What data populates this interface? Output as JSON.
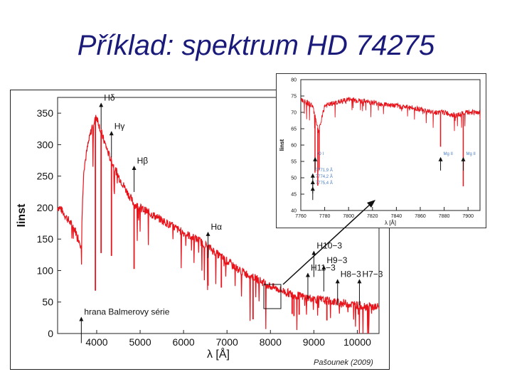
{
  "slide": {
    "title": "Příklad: spektrum HD 74275",
    "credit": "Pašounek (2009)"
  },
  "colors": {
    "spectrum": "#e8141c",
    "title": "#1a1a7a",
    "axis": "#222222",
    "annotation": "#4a7cc0"
  },
  "chart_data": [
    {
      "type": "line",
      "title": "",
      "xlabel": "λ [Å]",
      "ylabel": "Iinst",
      "xlim": [
        3100,
        10500
      ],
      "ylim": [
        0,
        375
      ],
      "xticks": [
        4000,
        5000,
        6000,
        7000,
        8000,
        9000,
        10000
      ],
      "yticks": [
        0,
        50,
        100,
        150,
        200,
        250,
        300,
        350
      ],
      "grid": false,
      "series": [
        {
          "x": [
            3150,
            3300,
            3500,
            3640,
            3700,
            3800,
            3900,
            4000,
            4100,
            4300,
            4500,
            4700,
            4862,
            5000,
            5200,
            5500,
            5800,
            6000,
            6300,
            6563,
            6800,
            7000,
            7300,
            7600,
            8000,
            8500,
            9000,
            9500,
            10000,
            10400
          ],
          "y": [
            200,
            185,
            165,
            140,
            260,
            300,
            330,
            345,
            320,
            280,
            250,
            225,
            205,
            200,
            192,
            180,
            168,
            160,
            150,
            138,
            125,
            115,
            100,
            90,
            75,
            62,
            55,
            50,
            45,
            42
          ]
        }
      ],
      "absorption_lines": [
        {
          "x": 3970,
          "depth": 0.8
        },
        {
          "x": 4102,
          "depth": 0.6
        },
        {
          "x": 4340,
          "depth": 0.55
        },
        {
          "x": 4861,
          "depth": 0.5
        },
        {
          "x": 6563,
          "depth": 0.45
        },
        {
          "x": 6870,
          "depth": 0.4
        },
        {
          "x": 7600,
          "depth": 0.75
        },
        {
          "x": 8500,
          "depth": 0.5
        },
        {
          "x": 8542,
          "depth": 0.55
        },
        {
          "x": 8662,
          "depth": 0.5
        },
        {
          "x": 9300,
          "depth": 0.6
        }
      ],
      "annotations": [
        {
          "label": "Hδ",
          "x": 4102,
          "y": 370
        },
        {
          "label": "Hγ",
          "x": 4340,
          "y": 325
        },
        {
          "label": "Hβ",
          "x": 4861,
          "y": 270
        },
        {
          "label": "Hα",
          "x": 6563,
          "y": 165
        },
        {
          "label": "H10−3",
          "x": 9000,
          "y": 135
        },
        {
          "label": "H9−3",
          "x": 9229,
          "y": 112
        },
        {
          "label": "H11−3",
          "x": 8862,
          "y": 100
        },
        {
          "label": "H8−3",
          "x": 9546,
          "y": 90
        },
        {
          "label": "H7−3",
          "x": 10049,
          "y": 90
        },
        {
          "label": "hrana Balmerovy série",
          "x": 3646,
          "y": 30
        }
      ]
    },
    {
      "type": "line",
      "title": "",
      "xlabel": "λ [Å]",
      "ylabel": "Iinst",
      "xlim": [
        7760,
        7910
      ],
      "ylim": [
        40,
        80
      ],
      "xticks": [
        7760,
        7780,
        7800,
        7820,
        7840,
        7860,
        7880,
        7900
      ],
      "yticks": [
        40,
        45,
        50,
        55,
        60,
        65,
        70,
        75,
        80
      ],
      "grid": false,
      "series": [
        {
          "x": [
            7760,
            7770,
            7775,
            7780,
            7790,
            7800,
            7820,
            7840,
            7860,
            7870,
            7880,
            7890,
            7900,
            7910
          ],
          "y": [
            74,
            72,
            64,
            72,
            73,
            74,
            73,
            72,
            71,
            70,
            70,
            69,
            70,
            70
          ]
        }
      ],
      "absorption_lines": [
        {
          "x": 7771.9,
          "depth": 0.6
        },
        {
          "x": 7774.2,
          "depth": 0.7
        },
        {
          "x": 7775.4,
          "depth": 0.5
        },
        {
          "x": 7877,
          "depth": 0.35
        },
        {
          "x": 7896,
          "depth": 0.75
        }
      ],
      "annotations": [
        {
          "label": "O I",
          "x": 7772,
          "y": 57
        },
        {
          "label": "Mg II",
          "x": 7877,
          "y": 57
        },
        {
          "label": "Mg II",
          "x": 7896,
          "y": 57
        },
        {
          "label": "7771,9 Å",
          "x": 7770,
          "y": 52
        },
        {
          "label": "7774,2 Å",
          "x": 7770,
          "y": 50
        },
        {
          "label": "7775,4 Å",
          "x": 7770,
          "y": 48
        }
      ]
    }
  ]
}
